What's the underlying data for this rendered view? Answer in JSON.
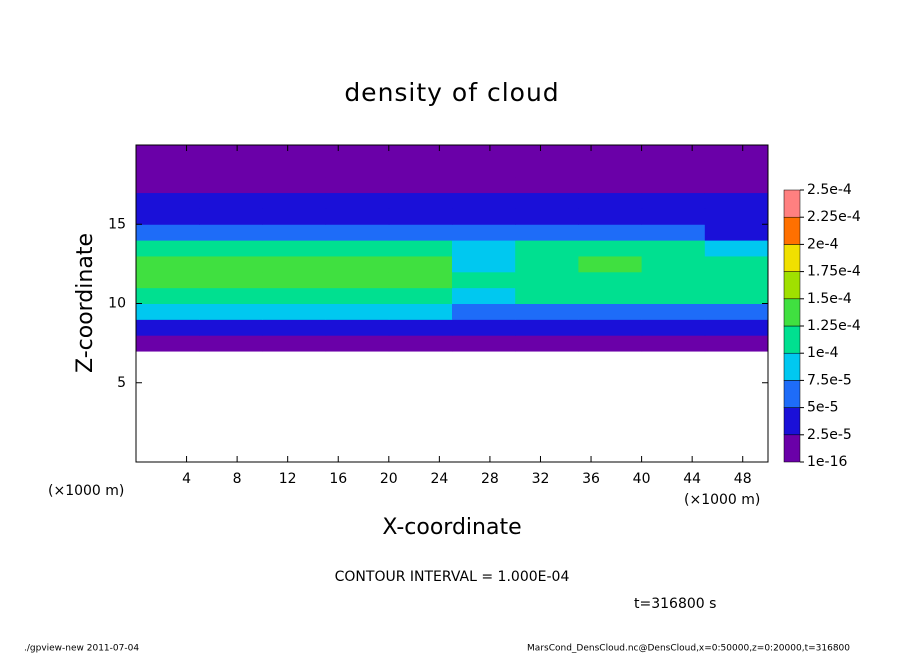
{
  "chart_data": {
    "type": "heatmap",
    "title": "density of cloud",
    "x_label": "X-coordinate",
    "y_label": "Z-coordinate",
    "x_unit": "(×1000 m)",
    "y_unit": "(×1000 m)",
    "contour_note": "CONTOUR INTERVAL = 1.000E-04",
    "time_note": "t=316800 s",
    "footer_left": "./gpview-new  2011-07-04",
    "footer_right": "MarsCond_DensCloud.nc@DensCloud,x=0:50000,z=0:20000,t=316800",
    "xlim": [
      0,
      50
    ],
    "xticks": [
      4,
      8,
      12,
      16,
      20,
      24,
      28,
      32,
      36,
      40,
      44,
      48
    ],
    "ylim": [
      0,
      20
    ],
    "yticks": [
      5,
      10,
      15
    ],
    "x_edges": [
      0,
      5,
      10,
      15,
      20,
      25,
      30,
      35,
      40,
      45,
      50
    ],
    "z_edges": [
      7,
      8,
      9,
      10,
      11,
      12,
      13,
      14,
      15,
      16,
      17,
      18,
      19,
      20
    ],
    "values": [
      [
        1e-05,
        1e-05,
        1e-05,
        1e-05,
        1e-05,
        1e-05,
        1e-05,
        1e-05,
        1e-05,
        1e-05
      ],
      [
        4e-05,
        4e-05,
        4e-05,
        4e-05,
        4e-05,
        4e-05,
        4e-05,
        3.5e-05,
        3e-05,
        4e-05
      ],
      [
        8e-05,
        8e-05,
        8e-05,
        8e-05,
        8e-05,
        7e-05,
        7e-05,
        7e-05,
        6e-05,
        7e-05
      ],
      [
        0.00011,
        0.000115,
        0.000115,
        0.00011,
        0.00011,
        9e-05,
        0.0001,
        0.000105,
        0.0001,
        0.0001
      ],
      [
        0.00013,
        0.000135,
        0.000135,
        0.00013,
        0.000125,
        0.0001,
        0.000115,
        0.00012,
        0.00012,
        0.000115
      ],
      [
        0.00013,
        0.00014,
        0.00014,
        0.000135,
        0.000125,
        9e-05,
        0.000115,
        0.000125,
        0.00012,
        0.00011
      ],
      [
        0.00011,
        0.00012,
        0.00012,
        0.000115,
        0.000105,
        8e-05,
        0.0001,
        0.00011,
        0.000105,
        8e-05
      ],
      [
        6e-05,
        7e-05,
        7e-05,
        7e-05,
        6e-05,
        5.5e-05,
        6e-05,
        7e-05,
        6e-05,
        4e-05
      ],
      [
        4e-05,
        4e-05,
        4e-05,
        4e-05,
        4e-05,
        4e-05,
        4e-05,
        4.5e-05,
        4e-05,
        3e-05
      ],
      [
        2.5e-05,
        3e-05,
        3e-05,
        3e-05,
        3e-05,
        3e-05,
        2.5e-05,
        2.5e-05,
        2.5e-05,
        2.5e-05
      ],
      [
        2e-05,
        2e-05,
        2e-05,
        2e-05,
        2e-05,
        2e-05,
        1e-05,
        1e-05,
        1e-05,
        1e-05
      ],
      [
        1e-05,
        1e-05,
        1e-05,
        1e-05,
        1e-05,
        1e-05,
        1e-05,
        1e-05,
        1e-05,
        1e-05
      ],
      [
        1e-05,
        1e-05,
        1e-05,
        1e-05,
        1e-05,
        1e-05,
        1e-05,
        1e-05,
        1e-05,
        1e-05
      ]
    ],
    "levels": [
      {
        "value": 1e-16,
        "label": "1e-16"
      },
      {
        "value": 2.5e-05,
        "label": "2.5e-5"
      },
      {
        "value": 5e-05,
        "label": "5e-5"
      },
      {
        "value": 7.5e-05,
        "label": "7.5e-5"
      },
      {
        "value": 0.0001,
        "label": "1e-4"
      },
      {
        "value": 0.000125,
        "label": "1.25e-4"
      },
      {
        "value": 0.00015,
        "label": "1.5e-4"
      },
      {
        "value": 0.000175,
        "label": "1.75e-4"
      },
      {
        "value": 0.0002,
        "label": "2e-4"
      },
      {
        "value": 0.000225,
        "label": "2.25e-4"
      },
      {
        "value": 0.00025,
        "label": "2.5e-4"
      }
    ],
    "colors": [
      "#6a00a8",
      "#1a10d8",
      "#1e6cf8",
      "#00c8f0",
      "#00e090",
      "#40e040",
      "#a0e000",
      "#f0e000",
      "#ff7000",
      "#ff8080"
    ]
  }
}
